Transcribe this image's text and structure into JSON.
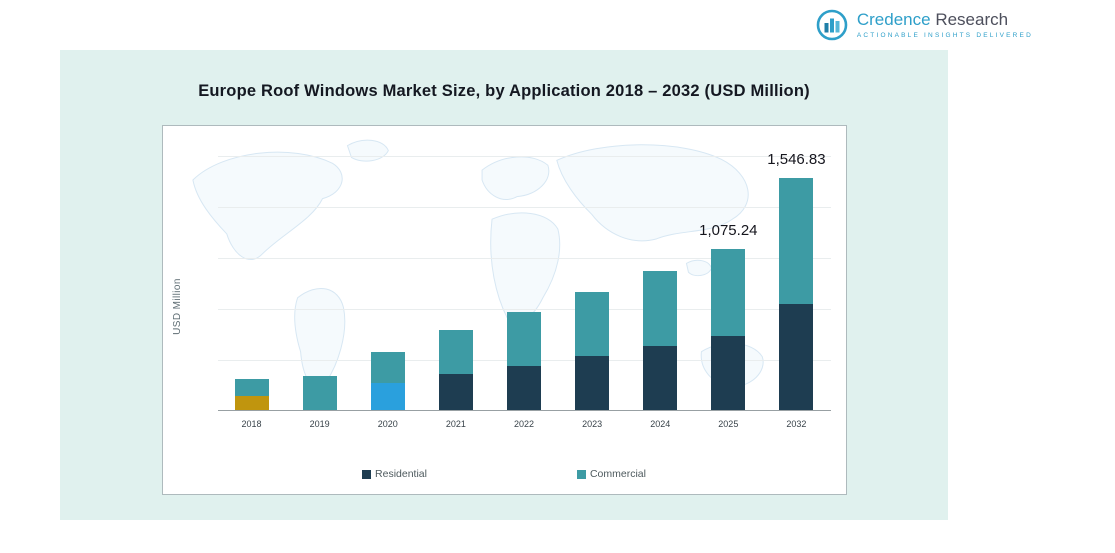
{
  "brand": {
    "name_primary": "Credence",
    "name_secondary": "Research",
    "tagline": "Actionable Insights Delivered",
    "accent_color": "#2e9fc9"
  },
  "chart_data": {
    "type": "stacked-bar",
    "title": "Europe Roof Windows Market Size, by Application 2018 – 2032 (USD Million)",
    "xlabel": "",
    "ylabel": "USD Million",
    "categories": [
      "2018",
      "2019",
      "2020",
      "2021",
      "2022",
      "2023",
      "2024",
      "2025",
      "2032"
    ],
    "series": [
      {
        "name": "Residential",
        "color": "#1e3d51",
        "values": [
          95,
          105,
          180,
          240,
          295,
          360,
          425,
          495,
          710
        ]
      },
      {
        "name": "Commercial",
        "color": "#3d9ba4",
        "values": [
          112,
          119,
          210,
          292,
          355,
          426,
          503,
          580.24,
          836.83
        ]
      }
    ],
    "totals": [
      207,
      224,
      390,
      532,
      650,
      786,
      928,
      1075.24,
      1546.83
    ],
    "segment_color_overrides": [
      {
        "category": "2018",
        "series": "Residential",
        "color": "#c0950e"
      },
      {
        "category": "2019",
        "series": "Residential",
        "color": "#3d9ba4"
      },
      {
        "category": "2020",
        "series": "Residential",
        "color": "#2aa0dd"
      }
    ],
    "data_labels": [
      {
        "category": "2025",
        "text": "1,075.24"
      },
      {
        "category": "2032",
        "text": "1,546.83"
      }
    ],
    "ylim": [
      0,
      1700
    ],
    "grid": true,
    "legend_position": "bottom"
  }
}
